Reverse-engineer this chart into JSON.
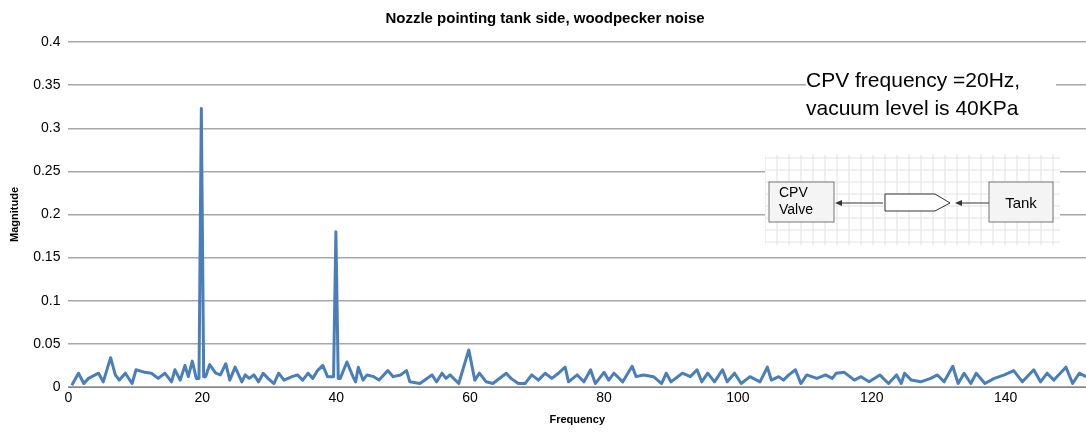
{
  "chart_data": {
    "type": "line",
    "title": "Nozzle pointing tank side, woodpecker noise",
    "xlabel": "Frequency",
    "ylabel": "Magnitude",
    "annotations": [
      "CPV frequency =20Hz, vacuum level is 40KPa",
      "CPV Valve",
      "Tank"
    ],
    "xlim": [
      0,
      152
    ],
    "xticks": [
      0,
      20,
      40,
      60,
      80,
      100,
      120,
      140
    ],
    "ylim": [
      0,
      0.4
    ],
    "yticks": [
      0,
      0.05,
      0.1,
      0.15,
      0.2,
      0.25,
      0.3,
      0.35,
      0.4
    ],
    "grid": "y",
    "legend": false,
    "marker": "none",
    "line_style": "solid",
    "series": [
      {
        "color": "#4a7ebb",
        "x": [
          0.5,
          1.5,
          2.3,
          3.0,
          4.5,
          5.2,
          6.3,
          7.0,
          7.6,
          8.5,
          9.5,
          10.1,
          11.4,
          12.4,
          13.4,
          14.4,
          15.4,
          15.9,
          16.7,
          17.4,
          17.9,
          18.5,
          19.1,
          19.5,
          19.85,
          20.2,
          20.5,
          21.1,
          22.0,
          22.7,
          23.5,
          24.1,
          24.9,
          25.9,
          26.4,
          27.0,
          27.7,
          28.4,
          29.1,
          29.8,
          30.7,
          31.4,
          32.2,
          33.4,
          34.2,
          35.0,
          35.8,
          36.5,
          37.2,
          38.0,
          38.7,
          39.6,
          39.95,
          40.3,
          40.6,
          41.6,
          42.5,
          42.9,
          43.3,
          44.0,
          44.6,
          45.6,
          46.4,
          47.7,
          48.5,
          49.6,
          50.5,
          51.0,
          52.5,
          54.3,
          55.0,
          55.8,
          56.4,
          57.0,
          58.3,
          59.8,
          60.7,
          61.4,
          62.4,
          63.4,
          65.4,
          66.1,
          67.2,
          68.2,
          69.2,
          70.2,
          71.2,
          72.2,
          73.2,
          74.2,
          74.7,
          76.0,
          77.0,
          78.0,
          78.7,
          80.0,
          80.7,
          81.5,
          82.8,
          84.2,
          84.8,
          85.9,
          87.4,
          88.6,
          89.3,
          90.0,
          91.7,
          92.9,
          93.9,
          94.6,
          95.5,
          96.5,
          97.7,
          98.4,
          99.5,
          100.5,
          101.8,
          103.3,
          104.4,
          105.0,
          106.1,
          106.8,
          107.6,
          108.6,
          109.4,
          110.3,
          111.8,
          113.1,
          114.1,
          114.7,
          115.9,
          117.4,
          118.4,
          119.6,
          121.2,
          122.5,
          123.7,
          124.4,
          124.9,
          125.9,
          127.3,
          128.8,
          129.8,
          130.8,
          132.1,
          132.9,
          133.8,
          134.8,
          135.6,
          136.9,
          138.3,
          139.8,
          141.2,
          142.5,
          144.2,
          145.2,
          146.2,
          147.2,
          149.0,
          150.0,
          151.0,
          152.0
        ],
        "values": [
          0.002,
          0.016,
          0.004,
          0.01,
          0.016,
          0.006,
          0.034,
          0.014,
          0.008,
          0.016,
          0.004,
          0.02,
          0.017,
          0.016,
          0.01,
          0.016,
          0.006,
          0.02,
          0.008,
          0.025,
          0.012,
          0.03,
          0.01,
          0.01,
          0.323,
          0.012,
          0.012,
          0.026,
          0.016,
          0.014,
          0.027,
          0.008,
          0.023,
          0.006,
          0.014,
          0.01,
          0.014,
          0.006,
          0.016,
          0.01,
          0.004,
          0.016,
          0.008,
          0.012,
          0.014,
          0.008,
          0.016,
          0.01,
          0.019,
          0.025,
          0.012,
          0.012,
          0.18,
          0.01,
          0.01,
          0.029,
          0.012,
          0.006,
          0.023,
          0.008,
          0.014,
          0.012,
          0.008,
          0.019,
          0.012,
          0.014,
          0.019,
          0.006,
          0.004,
          0.014,
          0.006,
          0.016,
          0.01,
          0.014,
          0.004,
          0.043,
          0.008,
          0.016,
          0.006,
          0.004,
          0.016,
          0.01,
          0.004,
          0.004,
          0.014,
          0.008,
          0.016,
          0.01,
          0.016,
          0.023,
          0.006,
          0.014,
          0.006,
          0.02,
          0.004,
          0.017,
          0.008,
          0.016,
          0.006,
          0.024,
          0.012,
          0.014,
          0.012,
          0.004,
          0.016,
          0.006,
          0.016,
          0.012,
          0.02,
          0.006,
          0.016,
          0.006,
          0.02,
          0.006,
          0.016,
          0.004,
          0.012,
          0.006,
          0.023,
          0.008,
          0.012,
          0.008,
          0.014,
          0.02,
          0.004,
          0.014,
          0.01,
          0.014,
          0.01,
          0.016,
          0.017,
          0.008,
          0.012,
          0.006,
          0.014,
          0.004,
          0.014,
          0.004,
          0.016,
          0.008,
          0.006,
          0.01,
          0.014,
          0.006,
          0.024,
          0.004,
          0.016,
          0.004,
          0.016,
          0.004,
          0.01,
          0.014,
          0.019,
          0.006,
          0.02,
          0.006,
          0.016,
          0.008,
          0.023,
          0.004,
          0.016,
          0.012
        ]
      }
    ]
  }
}
